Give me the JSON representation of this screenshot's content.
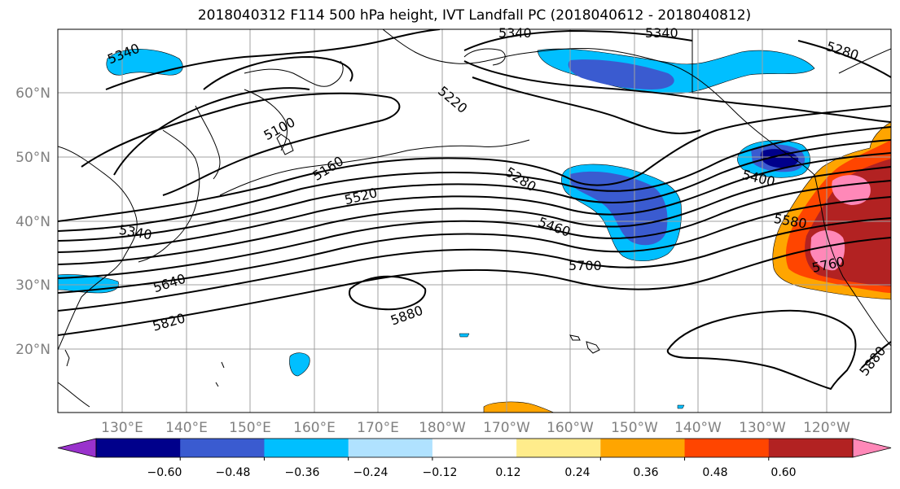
{
  "figure": {
    "title": "2018040312 F114 500 hPa height, IVT Landfall PC (2018040612 - 2018040812)"
  },
  "map": {
    "lat_labels": [
      "60°N",
      "50°N",
      "40°N",
      "30°N",
      "20°N"
    ],
    "lon_labels": [
      "130°E",
      "140°E",
      "150°E",
      "160°E",
      "170°E",
      "180°W",
      "170°W",
      "160°W",
      "150°W",
      "140°W",
      "130°W",
      "120°W"
    ],
    "contour_labels": [
      "5340",
      "5340",
      "5340",
      "5280",
      "5100",
      "5220",
      "5160",
      "5520",
      "5280",
      "5400",
      "5340",
      "5460",
      "5580",
      "5640",
      "5700",
      "5760",
      "5820",
      "5880",
      "5880"
    ]
  },
  "colorbar": {
    "tick_labels": [
      "−0.60",
      "−0.48",
      "−0.36",
      "−0.24",
      "−0.12",
      "0.12",
      "0.24",
      "0.36",
      "0.48",
      "0.60"
    ],
    "colors": [
      "#9932cc",
      "#00008b",
      "#3a5bd0",
      "#00bfff",
      "#b0e2ff",
      "#ffffff",
      "#ffec8b",
      "#ffa500",
      "#ff4500",
      "#b22222",
      "#ff88b8"
    ]
  }
}
